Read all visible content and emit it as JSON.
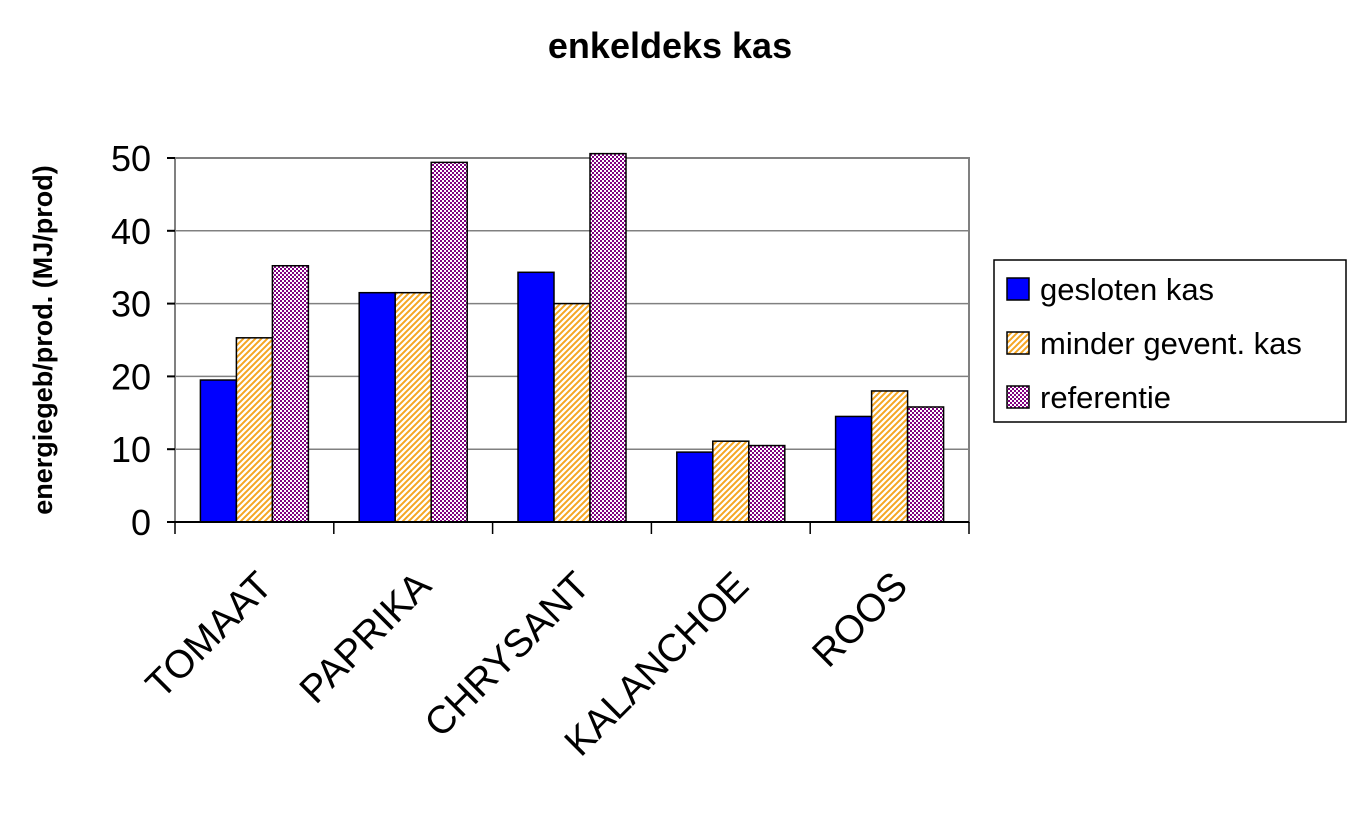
{
  "chart_data": {
    "type": "bar",
    "title": "enkeldeks kas",
    "ylabel": "energiegeb/prod. (MJ/prod)",
    "xlabel": "",
    "categories": [
      "TOMAAT",
      "PAPRIKA",
      "CHRYSANT",
      "KALANCHOE",
      "ROOS"
    ],
    "ylim": [
      0,
      50
    ],
    "yticks": [
      "0",
      "10",
      "20",
      "30",
      "40",
      "50"
    ],
    "grid": true,
    "legend_position": "right",
    "series": [
      {
        "name": "gesloten kas",
        "values": [
          19.5,
          31.5,
          34.3,
          9.6,
          14.5
        ],
        "color": "#0000ff"
      },
      {
        "name": "minder gevent. kas",
        "values": [
          25.3,
          31.5,
          30.0,
          11.1,
          18.0
        ],
        "color": "#ffcc66"
      },
      {
        "name": "referentie",
        "values": [
          35.2,
          49.4,
          50.6,
          10.5,
          15.8
        ],
        "color": "#cc66cc"
      }
    ]
  }
}
